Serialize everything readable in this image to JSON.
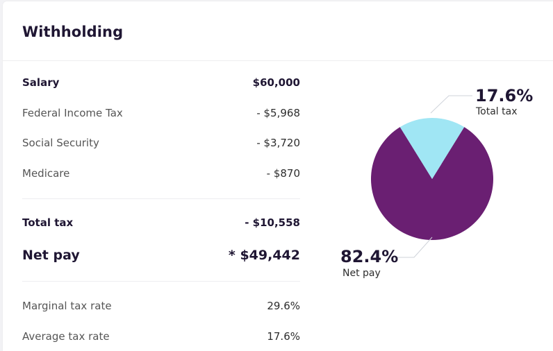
{
  "card": {
    "title": "Withholding"
  },
  "rows": {
    "salary": {
      "label": "Salary",
      "value": "$60,000"
    },
    "federal": {
      "label": "Federal Income Tax",
      "value": "- $5,968"
    },
    "social": {
      "label": "Social Security",
      "value": "- $3,720"
    },
    "medicare": {
      "label": "Medicare",
      "value": "- $870"
    },
    "total_tax": {
      "label": "Total tax",
      "value": "- $10,558"
    },
    "net_pay": {
      "label": "Net pay",
      "value": "* $49,442"
    },
    "marginal": {
      "label": "Marginal tax rate",
      "value": "29.6%"
    },
    "average": {
      "label": "Average tax rate",
      "value": "17.6%"
    }
  },
  "colors": {
    "net_pay": "#6a1f72",
    "total_tax": "#a0e6f4",
    "title_text": "#1f1633"
  },
  "chart_data": {
    "type": "pie",
    "slices": [
      {
        "label": "Total tax",
        "value": 17.6,
        "display": "17.6%",
        "color": "#a0e6f4"
      },
      {
        "label": "Net pay",
        "value": 82.4,
        "display": "82.4%",
        "color": "#6a1f72"
      }
    ]
  }
}
